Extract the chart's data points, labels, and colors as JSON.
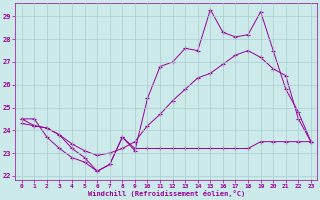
{
  "xlabel": "Windchill (Refroidissement éolien,°C)",
  "bg_color": "#cceaea",
  "grid_color": "#aacccc",
  "line_color": "#990099",
  "xlim": [
    -0.5,
    23.5
  ],
  "ylim": [
    21.8,
    29.6
  ],
  "yticks": [
    22,
    23,
    24,
    25,
    26,
    27,
    28,
    29
  ],
  "xticks": [
    0,
    1,
    2,
    3,
    4,
    5,
    6,
    7,
    8,
    9,
    10,
    11,
    12,
    13,
    14,
    15,
    16,
    17,
    18,
    19,
    20,
    21,
    22,
    23
  ],
  "series1_x": [
    0,
    1,
    2,
    3,
    4,
    5,
    6,
    7,
    8,
    9,
    10,
    11,
    12,
    13,
    14,
    15,
    16,
    17,
    18,
    19,
    20,
    21,
    22,
    23
  ],
  "series1_y": [
    24.5,
    24.2,
    24.1,
    23.8,
    23.2,
    22.8,
    22.2,
    22.5,
    23.7,
    23.1,
    25.4,
    26.8,
    27.0,
    27.6,
    27.5,
    29.3,
    28.3,
    28.1,
    28.2,
    29.2,
    27.5,
    25.8,
    24.8,
    23.5
  ],
  "series2_x": [
    0,
    1,
    2,
    3,
    4,
    5,
    6,
    7,
    8,
    9,
    10,
    11,
    12,
    13,
    14,
    15,
    16,
    17,
    18,
    19,
    20,
    21,
    22,
    23
  ],
  "series2_y": [
    24.3,
    24.2,
    24.1,
    23.8,
    23.4,
    23.1,
    22.9,
    23.0,
    23.2,
    23.5,
    24.2,
    24.7,
    25.3,
    25.8,
    26.3,
    26.5,
    26.9,
    27.3,
    27.5,
    27.2,
    26.7,
    26.4,
    24.5,
    23.5
  ],
  "series3_x": [
    0,
    1,
    2,
    3,
    4,
    5,
    6,
    7,
    8,
    9,
    10,
    11,
    12,
    13,
    14,
    15,
    16,
    17,
    18,
    19,
    20,
    21,
    22,
    23
  ],
  "series3_y": [
    24.5,
    24.5,
    23.7,
    23.2,
    22.8,
    22.6,
    22.2,
    22.5,
    23.7,
    23.2,
    23.2,
    23.2,
    23.2,
    23.2,
    23.2,
    23.2,
    23.2,
    23.2,
    23.2,
    23.5,
    23.5,
    23.5,
    23.5,
    23.5
  ]
}
